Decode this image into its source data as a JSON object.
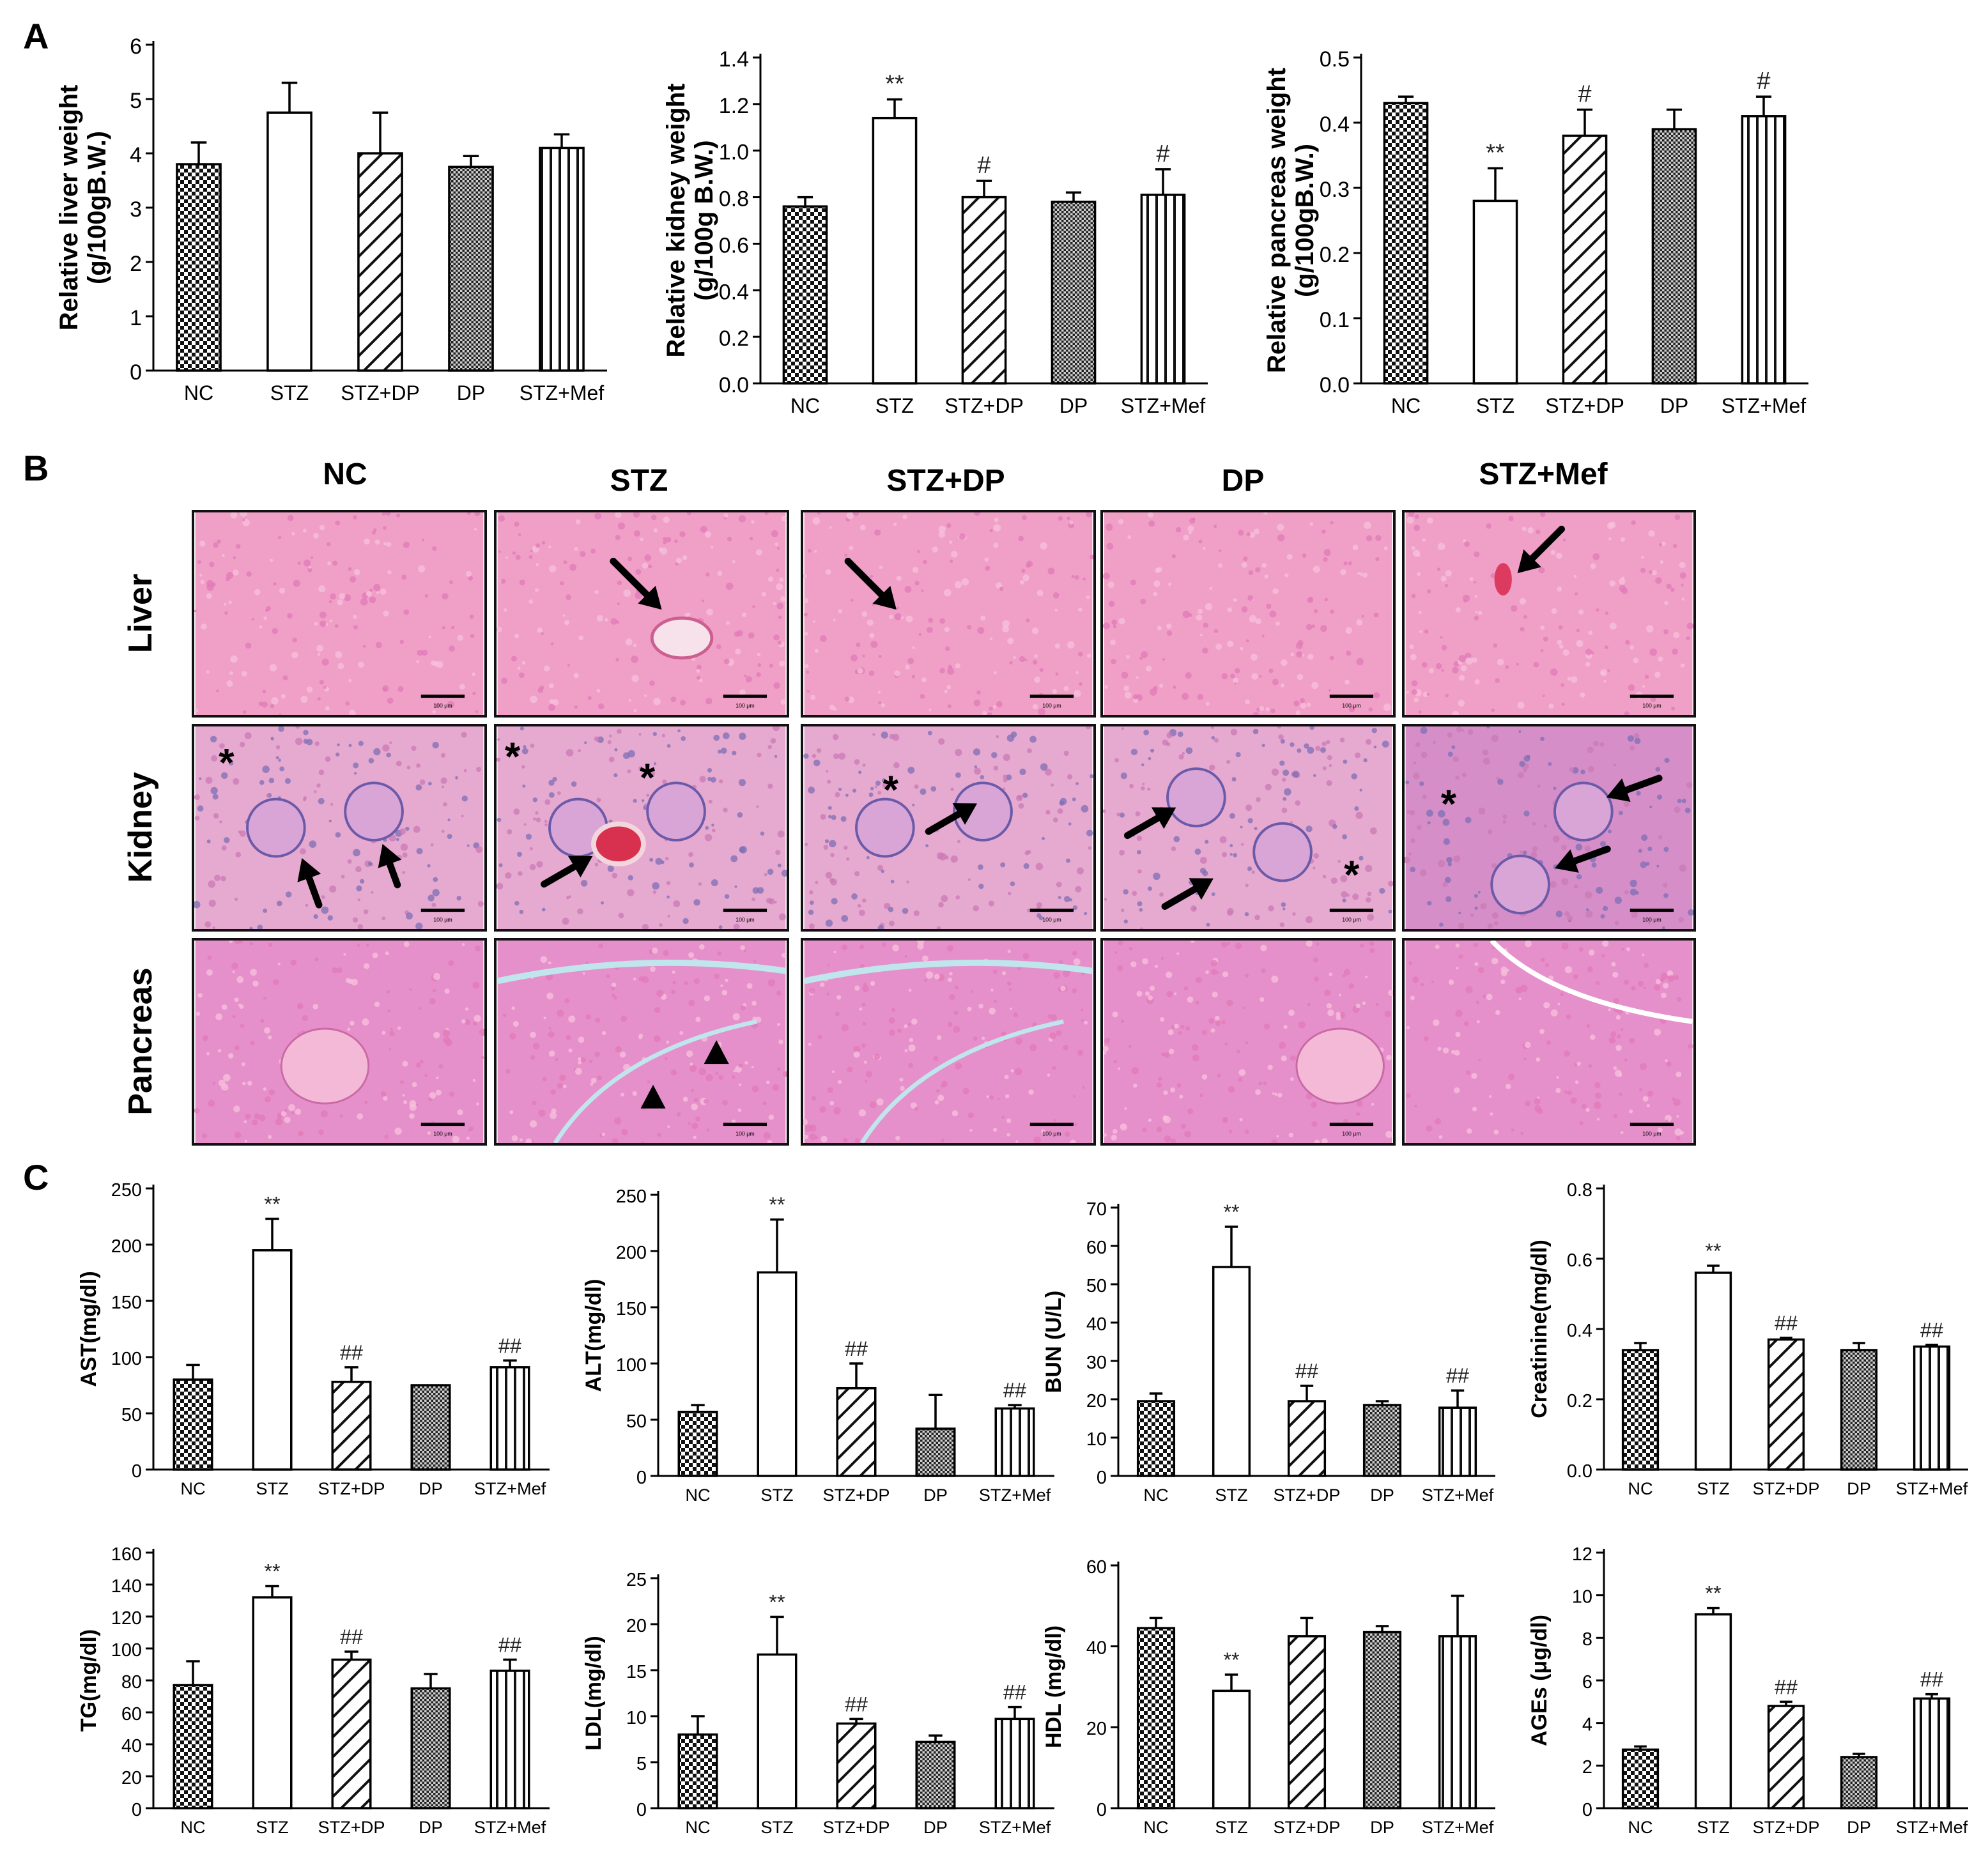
{
  "panel_labels": {
    "A": "A",
    "B": "B",
    "C": "C"
  },
  "groups": [
    "NC",
    "STZ",
    "STZ+DP",
    "DP",
    "STZ+Mef"
  ],
  "histology": {
    "column_headers": [
      "NC",
      "STZ",
      "STZ+DP",
      "DP",
      "STZ+Mef"
    ],
    "row_labels": [
      "Liver",
      "Kidney",
      "Pancreas"
    ],
    "scale_label": "100 μm",
    "asterisk": "*"
  },
  "chart_data": [
    {
      "id": "liver",
      "type": "bar",
      "ylabel": "Relative liver weight\n(g/100gB.W.)",
      "categories": [
        "NC",
        "STZ",
        "STZ+DP",
        "DP",
        "STZ+Mef"
      ],
      "values": [
        3.8,
        4.75,
        4.0,
        3.75,
        4.1
      ],
      "errors": [
        0.4,
        0.55,
        0.75,
        0.2,
        0.25
      ],
      "ylim": [
        0,
        6
      ],
      "yticks": [
        "0",
        "1",
        "2",
        "3",
        "4",
        "5",
        "6"
      ],
      "annotations": [
        "",
        "",
        "",
        "",
        ""
      ]
    },
    {
      "id": "kidney",
      "type": "bar",
      "ylabel": "Relative kidney weight\n(g/100g B.W.)",
      "categories": [
        "NC",
        "STZ",
        "STZ+DP",
        "DP",
        "STZ+Mef"
      ],
      "values": [
        0.76,
        1.14,
        0.8,
        0.78,
        0.81
      ],
      "errors": [
        0.04,
        0.08,
        0.07,
        0.04,
        0.11
      ],
      "ylim": [
        0,
        1.4
      ],
      "yticks": [
        "0.0",
        "0.2",
        "0.4",
        "0.6",
        "0.8",
        "1.0",
        "1.2",
        "1.4"
      ],
      "annotations": [
        "",
        "**",
        "#",
        "",
        "#"
      ]
    },
    {
      "id": "pancreas",
      "type": "bar",
      "ylabel": "Relative pancreas weight\n(g/100gB.W.)",
      "categories": [
        "NC",
        "STZ",
        "STZ+DP",
        "DP",
        "STZ+Mef"
      ],
      "values": [
        0.43,
        0.28,
        0.38,
        0.39,
        0.41
      ],
      "errors": [
        0.01,
        0.05,
        0.04,
        0.03,
        0.03
      ],
      "ylim": [
        0,
        0.5
      ],
      "yticks": [
        "0.0",
        "0.1",
        "0.2",
        "0.3",
        "0.4",
        "0.5"
      ],
      "annotations": [
        "",
        "**",
        "#",
        "",
        "#"
      ]
    },
    {
      "id": "ast",
      "type": "bar",
      "ylabel": "AST(mg/dl)",
      "categories": [
        "NC",
        "STZ",
        "STZ+DP",
        "DP",
        "STZ+Mef"
      ],
      "values": [
        80,
        195,
        78,
        75,
        91
      ],
      "errors": [
        13,
        28,
        13,
        0,
        6
      ],
      "ylim": [
        0,
        250
      ],
      "yticks": [
        "0",
        "50",
        "100",
        "150",
        "200",
        "250"
      ],
      "annotations": [
        "",
        "**",
        "##",
        "",
        "##"
      ]
    },
    {
      "id": "alt",
      "type": "bar",
      "ylabel": "ALT(mg/dl)",
      "categories": [
        "NC",
        "STZ",
        "STZ+DP",
        "DP",
        "STZ+Mef"
      ],
      "values": [
        57,
        181,
        78,
        42,
        60
      ],
      "errors": [
        6,
        47,
        22,
        30,
        3
      ],
      "ylim": [
        0,
        250
      ],
      "yticks": [
        "0",
        "50",
        "100",
        "150",
        "200",
        "250"
      ],
      "annotations": [
        "",
        "**",
        "##",
        "",
        "##"
      ]
    },
    {
      "id": "bun",
      "type": "bar",
      "ylabel": "BUN (U/L)",
      "categories": [
        "NC",
        "STZ",
        "STZ+DP",
        "DP",
        "STZ+Mef"
      ],
      "values": [
        19.5,
        54.5,
        19.5,
        18.5,
        17.8
      ],
      "errors": [
        2,
        10.5,
        4,
        1,
        4.5
      ],
      "ylim": [
        0,
        70
      ],
      "yticks": [
        "0",
        "10",
        "20",
        "30",
        "40",
        "50",
        "60",
        "70"
      ],
      "annotations": [
        "",
        "**",
        "##",
        "",
        "##"
      ]
    },
    {
      "id": "creatinine",
      "type": "bar",
      "ylabel": "Creatinine(mg/dl)",
      "categories": [
        "NC",
        "STZ",
        "STZ+DP",
        "DP",
        "STZ+Mef"
      ],
      "values": [
        0.34,
        0.56,
        0.37,
        0.34,
        0.35
      ],
      "errors": [
        0.02,
        0.02,
        0.005,
        0.02,
        0.005
      ],
      "ylim": [
        0,
        0.8
      ],
      "yticks": [
        "0.0",
        "0.2",
        "0.4",
        "0.6",
        "0.8"
      ],
      "annotations": [
        "",
        "**",
        "##",
        "",
        "##"
      ]
    },
    {
      "id": "tg",
      "type": "bar",
      "ylabel": "TG(mg/dl)",
      "categories": [
        "NC",
        "STZ",
        "STZ+DP",
        "DP",
        "STZ+Mef"
      ],
      "values": [
        77,
        132,
        93,
        75,
        86
      ],
      "errors": [
        15,
        7,
        5,
        9,
        7
      ],
      "ylim": [
        0,
        160
      ],
      "yticks": [
        "0",
        "20",
        "40",
        "60",
        "80",
        "100",
        "120",
        "140",
        "160"
      ],
      "annotations": [
        "",
        "**",
        "##",
        "",
        "##"
      ]
    },
    {
      "id": "ldl",
      "type": "bar",
      "ylabel": "LDL(mg/dl)",
      "categories": [
        "NC",
        "STZ",
        "STZ+DP",
        "DP",
        "STZ+Mef"
      ],
      "values": [
        8,
        16.7,
        9.2,
        7.2,
        9.7
      ],
      "errors": [
        2,
        4.1,
        0.5,
        0.7,
        1.3
      ],
      "ylim": [
        0,
        25
      ],
      "yticks": [
        "0",
        "5",
        "10",
        "15",
        "20",
        "25"
      ],
      "annotations": [
        "",
        "**",
        "##",
        "",
        "##"
      ]
    },
    {
      "id": "hdl",
      "type": "bar",
      "ylabel": "HDL (mg/dl)",
      "categories": [
        "NC",
        "STZ",
        "STZ+DP",
        "DP",
        "STZ+Mef"
      ],
      "values": [
        44.5,
        29,
        42.5,
        43.5,
        42.5
      ],
      "errors": [
        2.5,
        4,
        4.5,
        1.5,
        10
      ],
      "ylim": [
        0,
        60
      ],
      "yticks": [
        "0",
        "20",
        "40",
        "60"
      ],
      "annotations": [
        "",
        "**",
        "",
        "",
        ""
      ]
    },
    {
      "id": "ages",
      "type": "bar",
      "ylabel": "AGEs (μg/dl)",
      "categories": [
        "NC",
        "STZ",
        "STZ+DP",
        "DP",
        "STZ+Mef"
      ],
      "values": [
        2.75,
        9.1,
        4.8,
        2.4,
        5.15
      ],
      "errors": [
        0.15,
        0.3,
        0.2,
        0.15,
        0.2
      ],
      "ylim": [
        0,
        12
      ],
      "yticks": [
        "0",
        "2",
        "4",
        "6",
        "8",
        "10",
        "12"
      ],
      "annotations": [
        "",
        "**",
        "##",
        "",
        "##"
      ]
    }
  ]
}
